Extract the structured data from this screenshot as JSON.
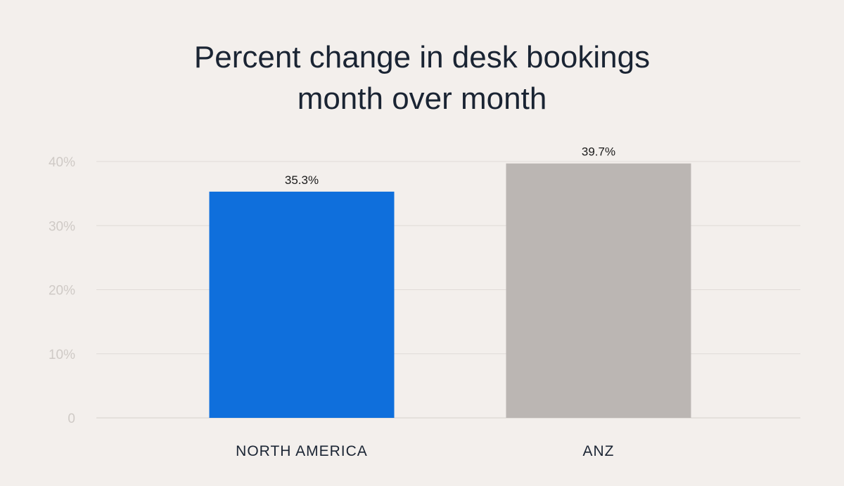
{
  "chart_data": {
    "type": "bar",
    "title_lines": [
      "Percent change in desk bookings",
      "month over month"
    ],
    "categories": [
      "NORTH AMERICA",
      "ANZ"
    ],
    "values": [
      35.3,
      39.7
    ],
    "value_labels": [
      "35.3%",
      "39.7%"
    ],
    "bar_colors": [
      "#0f6fdc",
      "#bbb6b3"
    ],
    "ylim": [
      0,
      40
    ],
    "yticks": [
      0,
      10,
      20,
      30,
      40
    ],
    "ytick_labels": [
      "0",
      "10%",
      "20%",
      "30%",
      "40%"
    ],
    "grid": true,
    "legend": "none",
    "xlabel": "",
    "ylabel": ""
  }
}
